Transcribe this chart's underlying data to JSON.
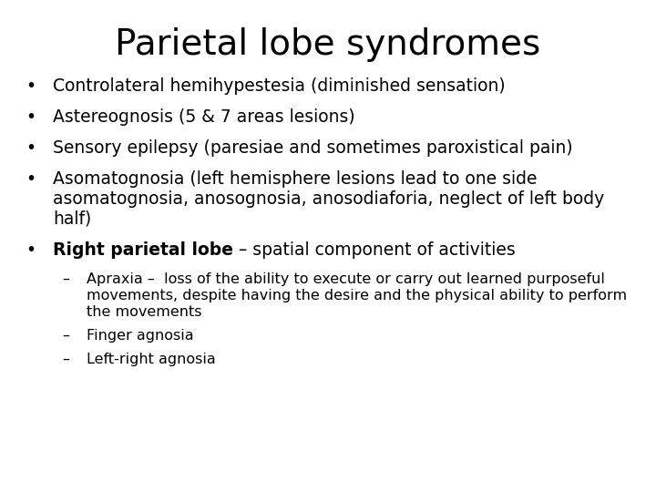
{
  "title": "Parietal lobe syndromes",
  "background_color": "#ffffff",
  "text_color": "#000000",
  "title_fontsize": 28,
  "bullet_fontsize": 13.5,
  "sub_fontsize": 11.5,
  "bullet_symbol": "•",
  "sub_symbol": "–",
  "bullet_items": [
    "Controlateral hemihypestesia (diminished sensation)",
    "Astereognosis (5 & 7 areas lesions)",
    "Sensory epilepsy (paresiae and sometimes paroxistical pain)",
    "Asomatognosia (left hemisphere lesions lead to one side\nasomatognosia, anosognosia, anosodiaforia, neglect of left body\nhalf)"
  ],
  "bold_bullet_prefix": "Right parietal lobe",
  "bold_bullet_suffix": " – spatial component of activities",
  "sub_items": [
    "Apraxia –  loss of the ability to execute or carry out learned purposeful\nmovements, despite having the desire and the physical ability to perform\nthe movements",
    "Finger agnosia",
    "Left-right agnosia"
  ]
}
